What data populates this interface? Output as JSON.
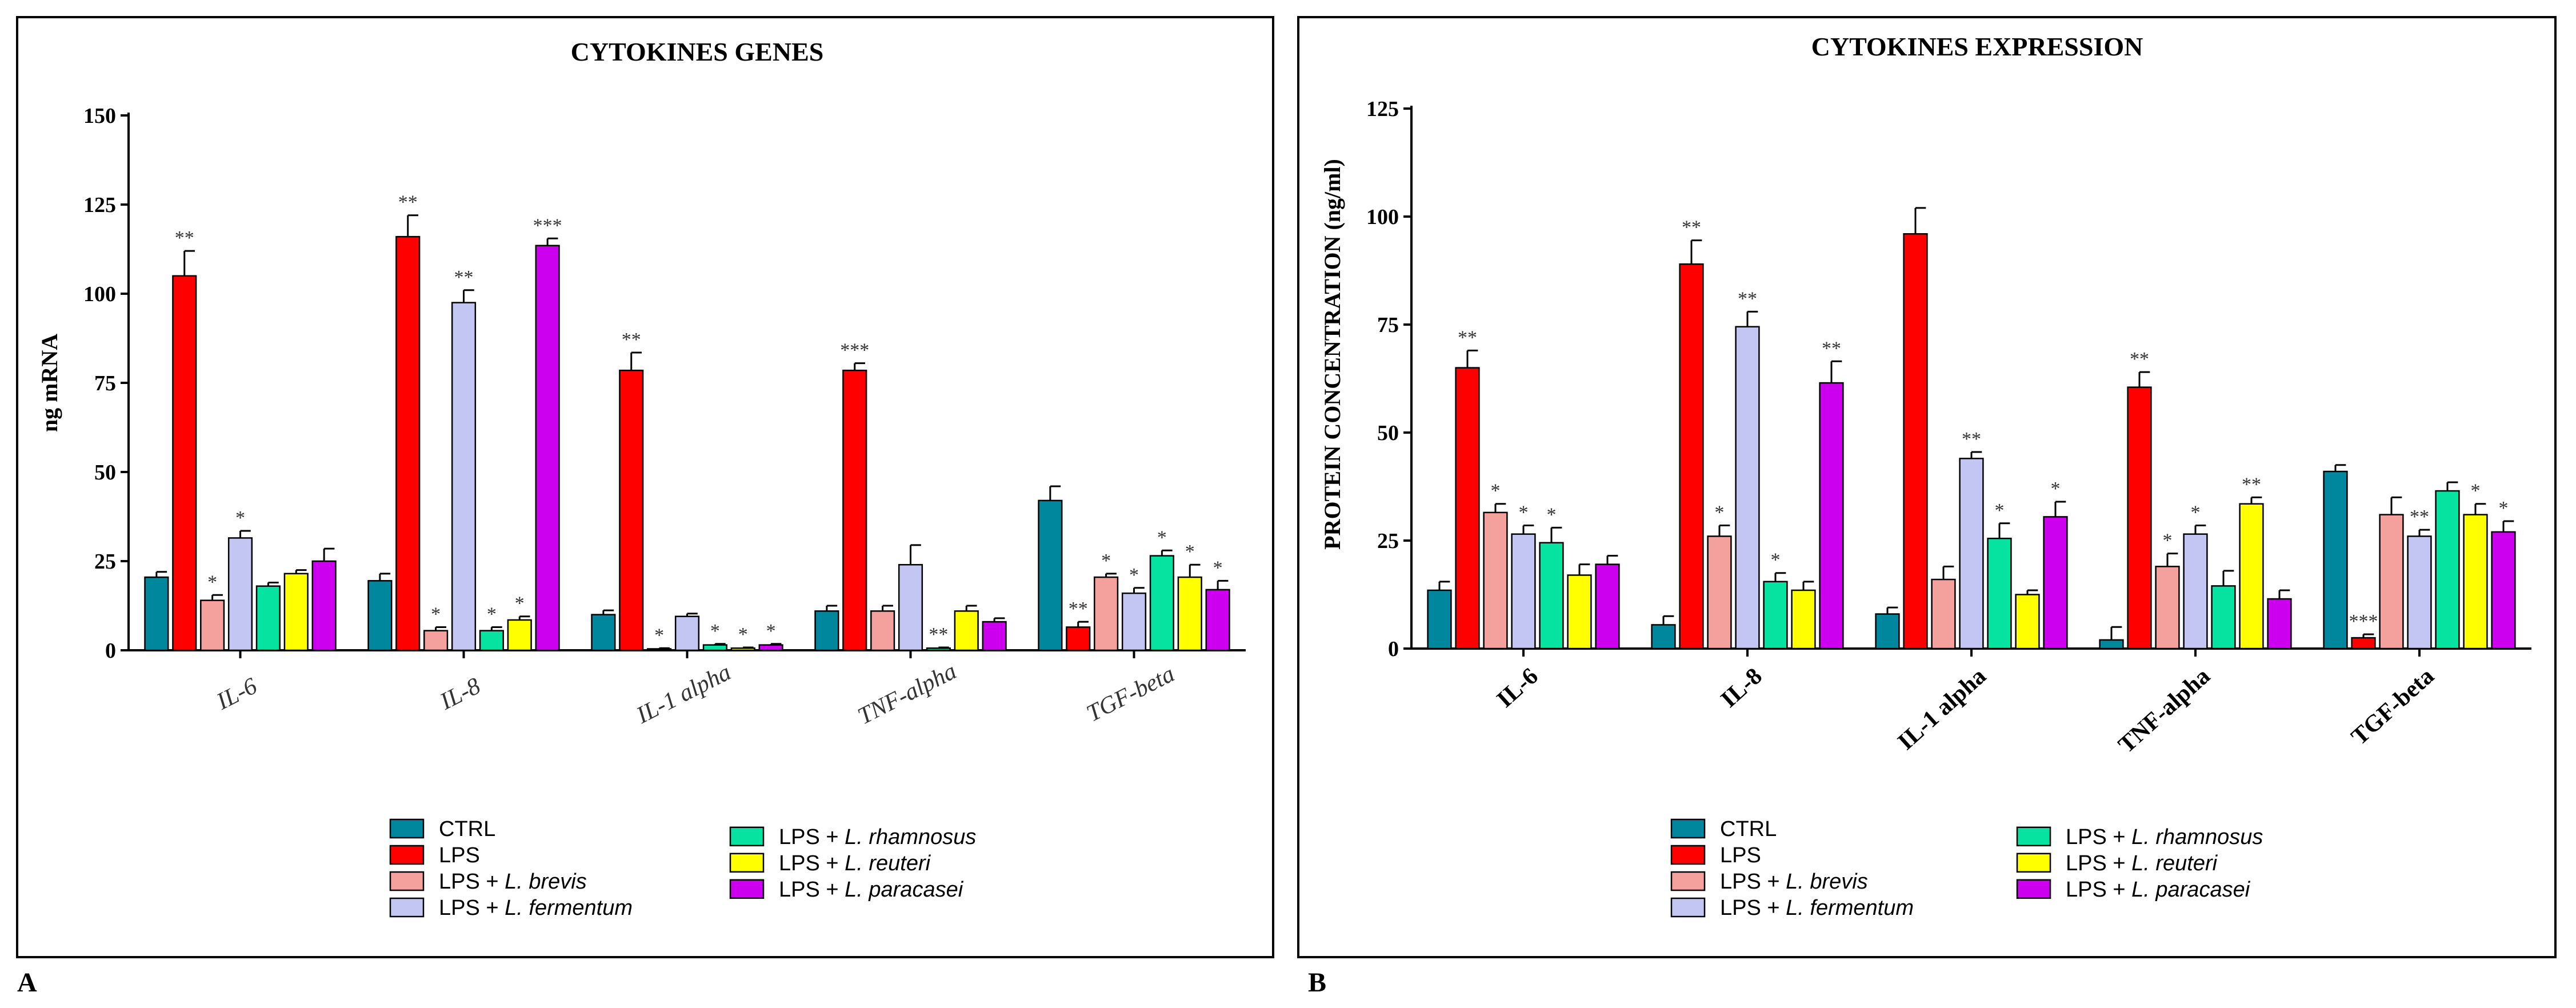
{
  "chart_data": [
    {
      "type": "bar",
      "panel_label": "A",
      "title": "CYTOKINES GENES",
      "ylabel": "ng mRNA",
      "xlabel": "",
      "ylim": [
        0,
        150
      ],
      "yticks": [
        0,
        25,
        50,
        75,
        100,
        125,
        150
      ],
      "category_style": "italic",
      "categories": [
        "IL-6",
        "IL-8",
        "IL-1 alpha",
        "TNF-alpha",
        "TGF-beta"
      ],
      "series": [
        {
          "name": "CTRL",
          "color": "#00879e",
          "values": [
            20.5,
            19.5,
            10,
            11,
            42
          ],
          "errors": [
            1.5,
            2,
            1.2,
            1.5,
            4
          ],
          "sig": [
            "",
            "",
            "",
            "",
            ""
          ]
        },
        {
          "name": "LPS",
          "color": "#ff0000",
          "values": [
            105,
            116,
            78.5,
            78.5,
            6.5
          ],
          "errors": [
            7,
            6,
            5,
            2,
            1.5
          ],
          "sig": [
            "**",
            "**",
            "**",
            "***",
            "**"
          ]
        },
        {
          "name": "LPS + L. brevis",
          "color": "#f4a09c",
          "values": [
            14,
            5.5,
            0.4,
            11,
            20.5
          ],
          "errors": [
            1.5,
            1,
            0.2,
            1.5,
            1
          ],
          "sig": [
            "*",
            "*",
            "*",
            "",
            "*"
          ]
        },
        {
          "name": "LPS + L. fermentum",
          "color": "#c3c5f2",
          "values": [
            31.5,
            97.5,
            9.5,
            24,
            16
          ],
          "errors": [
            2,
            3.5,
            0.8,
            5.5,
            1.5
          ],
          "sig": [
            "*",
            "**",
            "",
            "",
            "*"
          ]
        },
        {
          "name": "LPS + L. rhamnosus",
          "color": "#06e3a0",
          "values": [
            18,
            5.5,
            1.5,
            0.6,
            26.5
          ],
          "errors": [
            1,
            1,
            0.3,
            0.2,
            1.5
          ],
          "sig": [
            "",
            "*",
            "*",
            "**",
            "*"
          ]
        },
        {
          "name": "LPS + L. reuteri",
          "color": "#ffff00",
          "values": [
            21.5,
            8.5,
            0.6,
            11,
            20.5
          ],
          "errors": [
            1,
            1,
            0.2,
            1.5,
            3.5
          ],
          "sig": [
            "",
            "*",
            "*",
            "",
            "*"
          ]
        },
        {
          "name": "LPS + L. paracasei",
          "color": "#cc00ee",
          "values": [
            25,
            113.5,
            1.5,
            8,
            17
          ],
          "errors": [
            3.5,
            2,
            0.3,
            1,
            2.5
          ],
          "sig": [
            "",
            "***",
            "*",
            "",
            "*"
          ]
        }
      ]
    },
    {
      "type": "bar",
      "panel_label": "B",
      "title": "CYTOKINES EXPRESSION",
      "ylabel": "PROTEIN CONCENTRATION (ng/ml)",
      "xlabel": "",
      "ylim": [
        0,
        125
      ],
      "yticks": [
        0,
        25,
        50,
        75,
        100,
        125
      ],
      "category_style": "bold",
      "categories": [
        "IL-6",
        "IL-8",
        "IL-1 alpha",
        "TNF-alpha",
        "TGF-beta"
      ],
      "series": [
        {
          "name": "CTRL",
          "color": "#00879e",
          "values": [
            13.5,
            5.5,
            8,
            2,
            41
          ],
          "errors": [
            2,
            2,
            1.5,
            3,
            1.5
          ],
          "sig": [
            "",
            "",
            "",
            "",
            ""
          ]
        },
        {
          "name": "LPS",
          "color": "#ff0000",
          "values": [
            65,
            89,
            96,
            60.5,
            2.5
          ],
          "errors": [
            4,
            5.5,
            6,
            3.5,
            0.8
          ],
          "sig": [
            "**",
            "**",
            "",
            "**",
            "***"
          ]
        },
        {
          "name": "LPS + L. brevis",
          "color": "#f4a09c",
          "values": [
            31.5,
            26,
            16,
            19,
            31
          ],
          "errors": [
            2,
            2.5,
            3,
            3,
            4
          ],
          "sig": [
            "*",
            "*",
            "",
            "*",
            ""
          ]
        },
        {
          "name": "LPS + L. fermentum",
          "color": "#c3c5f2",
          "values": [
            26.5,
            74.5,
            44,
            26.5,
            26
          ],
          "errors": [
            2,
            3.5,
            1.5,
            2,
            1.5
          ],
          "sig": [
            "*",
            "**",
            "**",
            "*",
            "**"
          ]
        },
        {
          "name": "LPS + L. rhamnosus",
          "color": "#06e3a0",
          "values": [
            24.5,
            15.5,
            25.5,
            14.5,
            36.5
          ],
          "errors": [
            3.5,
            2,
            3.5,
            3.5,
            2
          ],
          "sig": [
            "*",
            "*",
            "*",
            "",
            ""
          ]
        },
        {
          "name": "LPS + L. reuteri",
          "color": "#ffff00",
          "values": [
            17,
            13.5,
            12.5,
            33.5,
            31
          ],
          "errors": [
            2.5,
            2,
            1,
            1.5,
            2.5
          ],
          "sig": [
            "",
            "",
            "",
            "**",
            "*"
          ]
        },
        {
          "name": "LPS + L. paracasei",
          "color": "#cc00ee",
          "values": [
            19.5,
            61.5,
            30.5,
            11.5,
            27
          ],
          "errors": [
            2,
            5,
            3.5,
            2,
            2.5
          ],
          "sig": [
            "",
            "**",
            "*",
            "",
            "*"
          ]
        }
      ]
    }
  ],
  "legend": {
    "items": [
      {
        "prefix": "CTRL",
        "species": ""
      },
      {
        "prefix": "LPS",
        "species": ""
      },
      {
        "prefix": "LPS + ",
        "species": "L. brevis"
      },
      {
        "prefix": "LPS + ",
        "species": "L. fermentum"
      },
      {
        "prefix": "LPS + ",
        "species": "L. rhamnosus"
      },
      {
        "prefix": "LPS + ",
        "species": "L. reuteri"
      },
      {
        "prefix": "LPS + ",
        "species": "L. paracasei"
      }
    ]
  }
}
